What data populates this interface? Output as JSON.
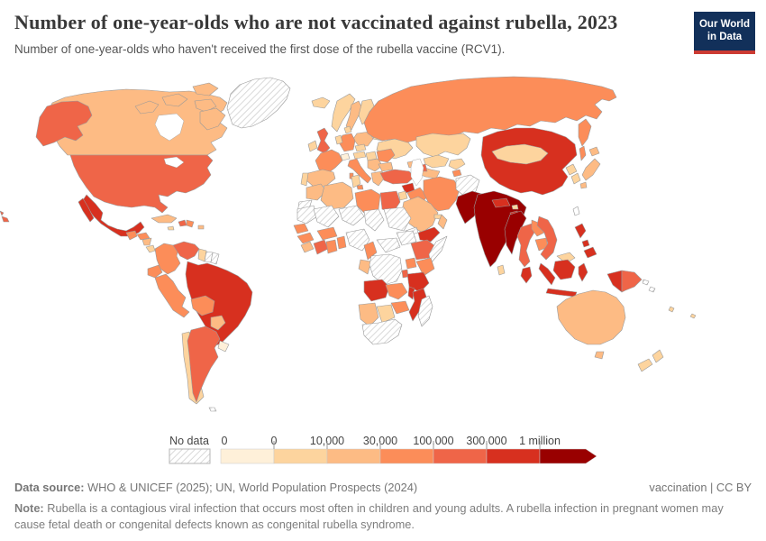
{
  "header": {
    "title": "Number of one-year-olds who are not vaccinated against rubella, 2023",
    "subtitle": "Number of one-year-olds who haven't received the first dose of the rubella vaccine (RCV1).",
    "logo": {
      "line1": "Our World",
      "line2": "in Data",
      "bg_color": "#12305a",
      "bar_color": "#cc3b33"
    }
  },
  "legend": {
    "no_data_label": "No data",
    "tick_labels": [
      "0",
      "0",
      "10,000",
      "30,000",
      "100,000",
      "300,000",
      "1 million"
    ],
    "colors": [
      "#fef0d9",
      "#fdd49e",
      "#fdbb84",
      "#fc8d59",
      "#ef6548",
      "#d7301f",
      "#990000"
    ],
    "bin_meanings": [
      "0",
      "0–10,000",
      "10,000–30,000",
      "30,000–100,000",
      "100,000–300,000",
      "300,000–1 million",
      "1 million+"
    ]
  },
  "map": {
    "border_color": "#9a9a9a",
    "no_data_pattern_color": "#cfcfcf",
    "countries": {
      "greenland": "no_data",
      "canada": 2,
      "usa": 4,
      "mexico": 5,
      "guatemala": 3,
      "honduras": 3,
      "nicaragua": 2,
      "costa_rica": 1,
      "panama": 1,
      "cuba": 2,
      "haiti": 4,
      "dominican_republic": 3,
      "jamaica": 1,
      "puerto_rico": 2,
      "colombia": 3,
      "venezuela": 4,
      "guyana": 1,
      "suriname": "no_data",
      "french_guiana": "no_data",
      "ecuador": 3,
      "peru": 3,
      "brazil": 5,
      "bolivia": 3,
      "paraguay": 2,
      "chile": 1,
      "argentina": 4,
      "uruguay": 0,
      "falkland_islands": "no_data",
      "iceland": 1,
      "united_kingdom": 4,
      "ireland": 1,
      "norway": 1,
      "sweden": 2,
      "finland": 1,
      "denmark": 1,
      "baltics": 1,
      "belarus": 1,
      "ukraine": 1,
      "poland": 2,
      "germany": 3,
      "benelux": 1,
      "france": 3,
      "spain": 2,
      "portugal": 1,
      "switzerland": 0,
      "czechia": 1,
      "austria": 1,
      "hungary": 1,
      "italy": 3,
      "balkans": 2,
      "romania": 3,
      "bulgaria": 2,
      "greece": 2,
      "russia": 3,
      "kazakhstan": 1,
      "uzbekistan": 1,
      "turkmenistan": 2,
      "kyrgyzstan": 1,
      "tajikistan": 3,
      "georgia": 2,
      "azerbaijan": 4,
      "turkey": 4,
      "syria": 5,
      "iraq": 3,
      "iran": 3,
      "jordan": 1,
      "saudi_arabia": 2,
      "yemen": 5,
      "oman": 2,
      "uae": 1,
      "afghanistan": "no_data",
      "pakistan": 6,
      "india": 6,
      "nepal": 5,
      "bhutan": 1,
      "bangladesh": 5,
      "sri_lanka": 1,
      "china": 5,
      "mongolia": 1,
      "north_korea": 1,
      "south_korea": 1,
      "japan": 2,
      "taiwan": "none",
      "myanmar": 6,
      "thailand": 4,
      "laos": 3,
      "cambodia": 3,
      "vietnam": 4,
      "malaysia": 5,
      "brunei": 1,
      "philippines": 5,
      "indonesia": 5,
      "timor": 3,
      "papua_new_guinea": 4,
      "solomon_islands": "no_data",
      "fiji": 1,
      "vanuatu": 1,
      "australia": 2,
      "new_zealand": 1,
      "morocco": 2,
      "western_sahara": "no_data",
      "algeria": 2,
      "tunisia": 1,
      "libya": 3,
      "egypt": 4,
      "mauritania": "no_data",
      "mali": "no_data",
      "niger": "no_data",
      "chad": "no_data",
      "sudan": "no_data",
      "eritrea": "no_data",
      "senegal": 3,
      "guinea": 3,
      "sierra_leone": 2,
      "ivory_coast": 4,
      "ghana": 3,
      "benin": 3,
      "burkina_faso": 3,
      "nigeria": "no_data",
      "cameroon": 3,
      "central_african_republic": "no_data",
      "south_sudan": "no_data",
      "ethiopia": 4,
      "somalia": "no_data",
      "kenya": 3,
      "uganda": 3,
      "congo": 2,
      "drc": "no_data",
      "rwanda": 4,
      "tanzania": 5,
      "angola": 5,
      "zambia": 3,
      "malawi": 5,
      "mozambique": 5,
      "zimbabwe": 3,
      "namibia": 2,
      "botswana": 1,
      "south_africa": "no_data",
      "madagascar": "no_data"
    }
  },
  "footer": {
    "source_label": "Data source:",
    "source_text": " WHO & UNICEF (2025); UN, World Population Prospects (2024)",
    "rights": "vaccination | CC BY",
    "note_label": "Note:",
    "note_text": " Rubella is a contagious viral infection that occurs most often in children and young adults. A rubella infection in pregnant women may cause fetal death or congenital defects known as congenital rubella syndrome."
  }
}
